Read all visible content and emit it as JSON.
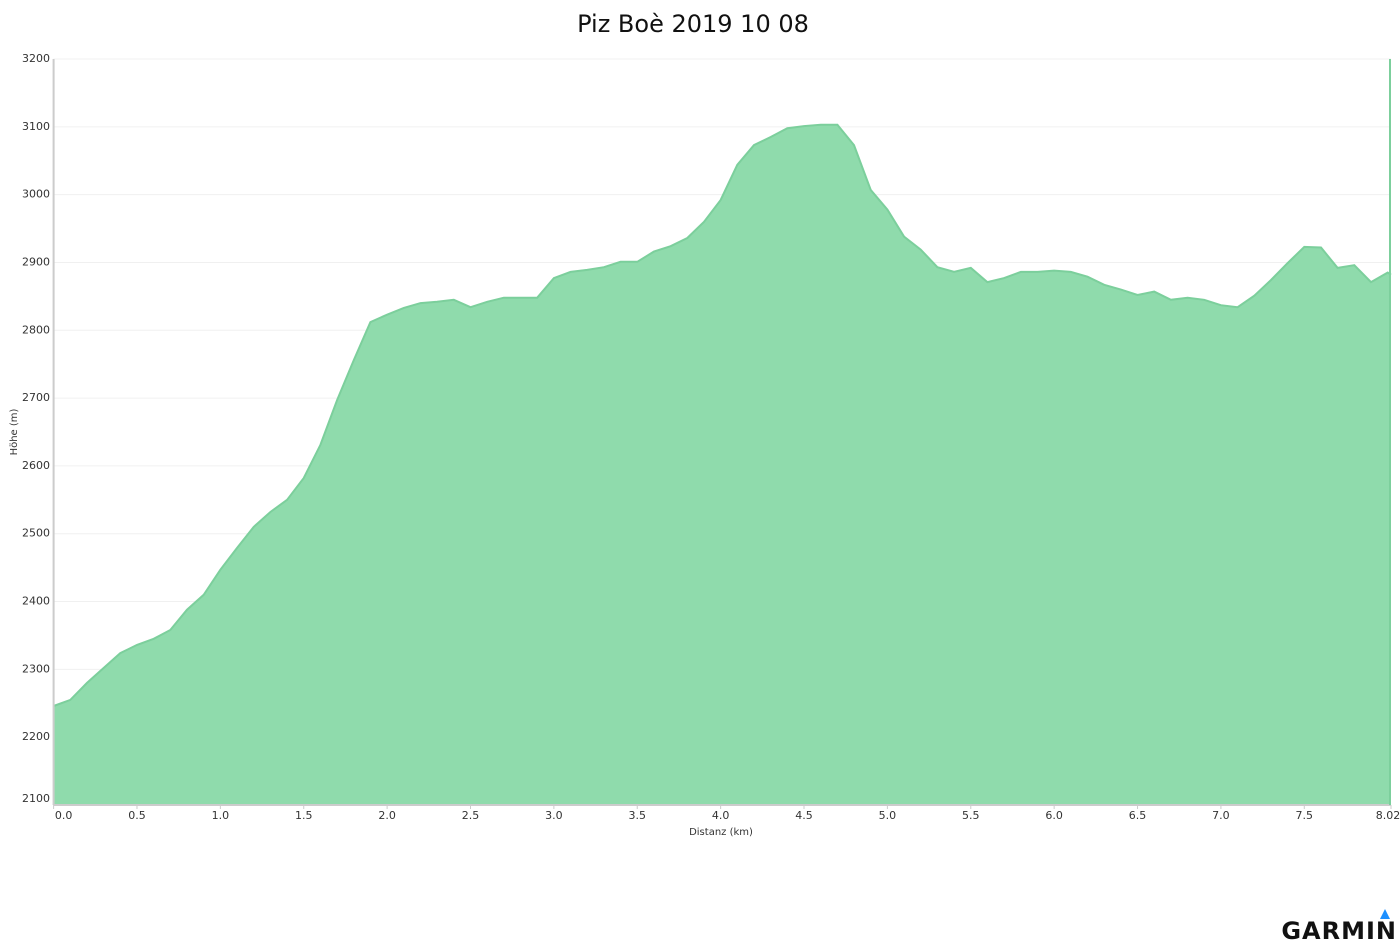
{
  "chart_data": {
    "type": "area",
    "title": "Piz Boè 2019 10 08",
    "x_label": "Distanz   (km)",
    "y_label": "Höhe (m)",
    "color": "#8fdbac",
    "line_color": "#7ccf9c",
    "grid": true,
    "x": [
      0,
      0.1,
      0.2,
      0.3,
      0.4,
      0.5,
      0.6,
      0.7,
      0.8,
      0.9,
      1.0,
      1.1,
      1.2,
      1.3,
      1.4,
      1.5,
      1.6,
      1.7,
      1.8,
      1.9,
      2.0,
      2.1,
      2.2,
      2.3,
      2.4,
      2.5,
      2.6,
      2.7,
      2.8,
      2.9,
      3.0,
      3.1,
      3.2,
      3.3,
      3.4,
      3.5,
      3.6,
      3.7,
      3.8,
      3.9,
      4.0,
      4.1,
      4.2,
      4.3,
      4.4,
      4.5,
      4.6,
      4.7,
      4.8,
      4.9,
      5.0,
      5.1,
      5.2,
      5.3,
      5.4,
      5.5,
      5.6,
      5.7,
      5.8,
      5.9,
      6.0,
      6.1,
      6.2,
      6.3,
      6.4,
      6.5,
      6.6,
      6.7,
      6.8,
      6.9,
      7.0,
      7.1,
      7.2,
      7.3,
      7.4,
      7.5,
      7.6,
      7.7,
      7.8,
      7.9,
      8.0,
      8.02
    ],
    "values": [
      2246,
      2255,
      2280,
      2302,
      2324,
      2336,
      2345,
      2358,
      2388,
      2410,
      2447,
      2479,
      2510,
      2532,
      2550,
      2582,
      2631,
      2697,
      2756,
      2812,
      2823,
      2833,
      2840,
      2842,
      2845,
      2834,
      2842,
      2848,
      2848,
      2848,
      2877,
      2886,
      2889,
      2893,
      2901,
      2901,
      2916,
      2924,
      2936,
      2960,
      2992,
      3044,
      3073,
      3085,
      3098,
      3101,
      3103,
      3103,
      3073,
      3007,
      2978,
      2938,
      2919,
      2893,
      2886,
      2892,
      2871,
      2877,
      2886,
      2886,
      2888,
      2886,
      2879,
      2867,
      2860,
      2852,
      2857,
      2845,
      2848,
      2845,
      2837,
      2834,
      2851,
      2874,
      2899,
      2923,
      2922,
      2892,
      2896,
      2871,
      2885,
      2882
    ],
    "xlim": [
      0,
      8.02
    ],
    "ylim": [
      2100,
      3200
    ],
    "xticks": [
      {
        "value": 0,
        "label": "0.0"
      },
      0.5,
      {
        "value": 1,
        "label": "1.0"
      },
      1.5,
      {
        "value": 2,
        "label": "2.0"
      },
      2.5,
      {
        "value": 3,
        "label": "3.0"
      },
      3.5,
      {
        "value": 4,
        "label": "4.0"
      },
      4.5,
      {
        "value": 5,
        "label": "5.0"
      },
      5.5,
      {
        "value": 6,
        "label": "6.0"
      },
      6.5,
      {
        "value": 7,
        "label": "7.0"
      },
      7.5,
      8.02
    ],
    "yticks": [
      2100,
      2200,
      2300,
      2400,
      2500,
      2600,
      2700,
      2800,
      2900,
      3000,
      3100,
      3200
    ]
  },
  "logo": "GARMIN"
}
